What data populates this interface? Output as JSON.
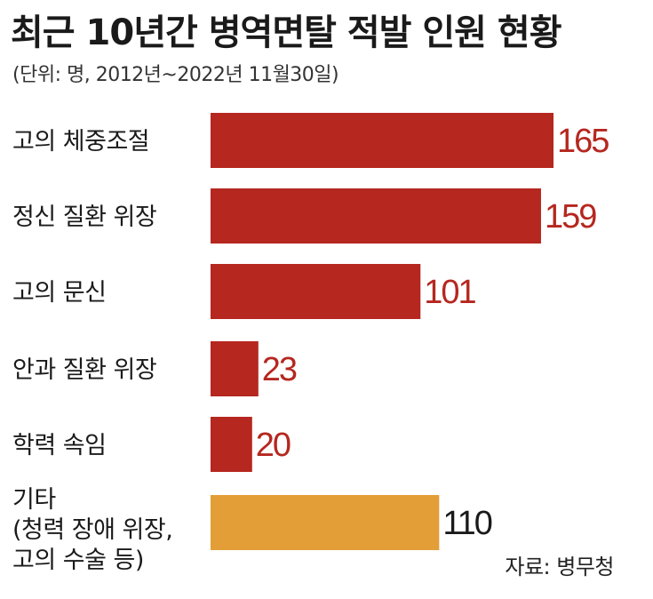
{
  "header": {
    "title": "최근 10년간 병역면탈 적발 인원 현황",
    "subtitle": "(단위: 명, 2012년~2022년 11월30일)"
  },
  "footer": {
    "source": "자료: 병무청"
  },
  "colors": {
    "primary_bar": "#b5271f",
    "other_bar": "#e39e38",
    "primary_value": "#b5271f",
    "other_value": "#1a1a1a"
  },
  "chart_data": {
    "type": "bar",
    "orientation": "horizontal",
    "title": "최근 10년간 병역면탈 적발 인원 현황",
    "subtitle": "(단위: 명, 2012년~2022년 11월30일)",
    "categories": [
      [
        "고의 체중조절"
      ],
      [
        "정신 질환 위장"
      ],
      [
        "고의 문신"
      ],
      [
        "안과 질환 위장"
      ],
      [
        "학력 속임"
      ],
      [
        "기타",
        "(청력 장애 위장,",
        "고의 수술 등)"
      ]
    ],
    "values": [
      165,
      159,
      101,
      23,
      20,
      110
    ],
    "highlight": [
      false,
      false,
      false,
      false,
      false,
      true
    ],
    "value_labels": [
      "165",
      "159",
      "101",
      "23",
      "20",
      "110"
    ],
    "xlim": [
      0,
      165
    ],
    "grid": false,
    "legend": "none"
  }
}
